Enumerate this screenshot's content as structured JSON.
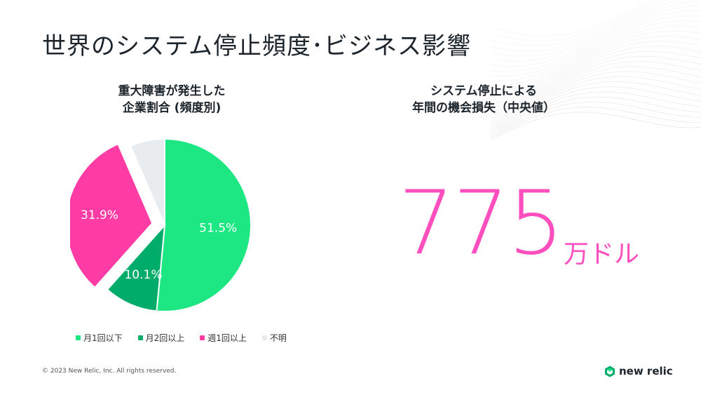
{
  "slide": {
    "title": "世界のシステム停止頻度･ビジネス影響",
    "copyright": "© 2023 New Relic, Inc. All rights reserved.",
    "logo_text": "new relic",
    "logo_icon": "new-relic-hexagon-icon"
  },
  "chart_data": [
    {
      "type": "pie",
      "title": [
        "重大障害が発生した",
        "企業割合 (頻度別)"
      ],
      "slices": [
        {
          "label": "月1回以下",
          "value": 51.5,
          "display": "51.5%",
          "color": "#1ce783"
        },
        {
          "label": "月2回以上",
          "value": 10.1,
          "display": "10.1%",
          "color": "#00ac69"
        },
        {
          "label": "週1回以上",
          "value": 31.9,
          "display": "31.9%",
          "color": "#ff3ca6",
          "exploded": true
        },
        {
          "label": "不明",
          "value": 6.5,
          "display": "",
          "color": "#e8ecee"
        }
      ],
      "legend_placement": "bottom"
    },
    {
      "type": "table",
      "title": [
        "システム停止による",
        "年間の機会損失（中央値）"
      ],
      "value": "775",
      "unit": "万ドル",
      "value_color": "#ff4fbf"
    }
  ]
}
